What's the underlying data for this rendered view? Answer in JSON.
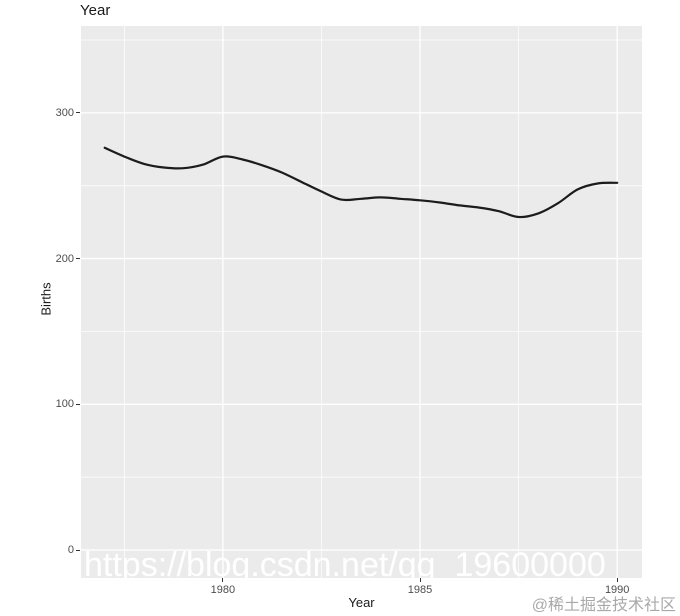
{
  "plot": {
    "title": "Year",
    "xlabel": "Year",
    "ylabel": "Births"
  },
  "overlays": {
    "watermark": "https://blog.csdn.net/qq_19600000",
    "credit": "@稀土掘金技术社区"
  },
  "colors": {
    "panel_bg": "#EBEBEB",
    "grid": "#FFFFFF",
    "line": "#1C1C1C",
    "tick_label": "#4D4D4D",
    "axis_title": "#1A1A1A",
    "watermark": "#FFFFFF",
    "credit": "#A9A9A9"
  },
  "chart_data": {
    "type": "line",
    "title": "Year",
    "xlabel": "Year",
    "ylabel": "Births",
    "x": [
      1977,
      1977.5,
      1978,
      1978.5,
      1979,
      1979.5,
      1980,
      1980.5,
      1981,
      1981.5,
      1982,
      1982.5,
      1983,
      1983.5,
      1984,
      1984.5,
      1985,
      1985.5,
      1986,
      1986.5,
      1987,
      1987.5,
      1988,
      1988.5,
      1989,
      1989.5,
      1990
    ],
    "values": [
      276,
      270,
      265,
      262.5,
      262,
      264.5,
      270,
      268,
      264,
      259,
      252.5,
      246,
      240.5,
      241,
      242,
      241,
      240,
      238.5,
      236.5,
      235,
      232.5,
      228.5,
      231,
      238,
      247.5,
      251.5,
      252
    ],
    "xlim": [
      1976.4,
      1990.63
    ],
    "ylim": [
      -19.2,
      359.6
    ],
    "x_ticks": [
      1980,
      1985,
      1990
    ],
    "x_tick_labels": [
      "1980",
      "1985",
      "1990"
    ],
    "y_ticks": [
      0,
      100,
      200,
      300
    ],
    "y_tick_labels": [
      "0",
      "100",
      "200",
      "300"
    ],
    "x_minor_ticks": [
      1977.5,
      1982.5,
      1987.5
    ],
    "y_minor_ticks": [
      50,
      150,
      250,
      350
    ],
    "grid": "on",
    "legend": "none",
    "line_width": 2.2
  }
}
